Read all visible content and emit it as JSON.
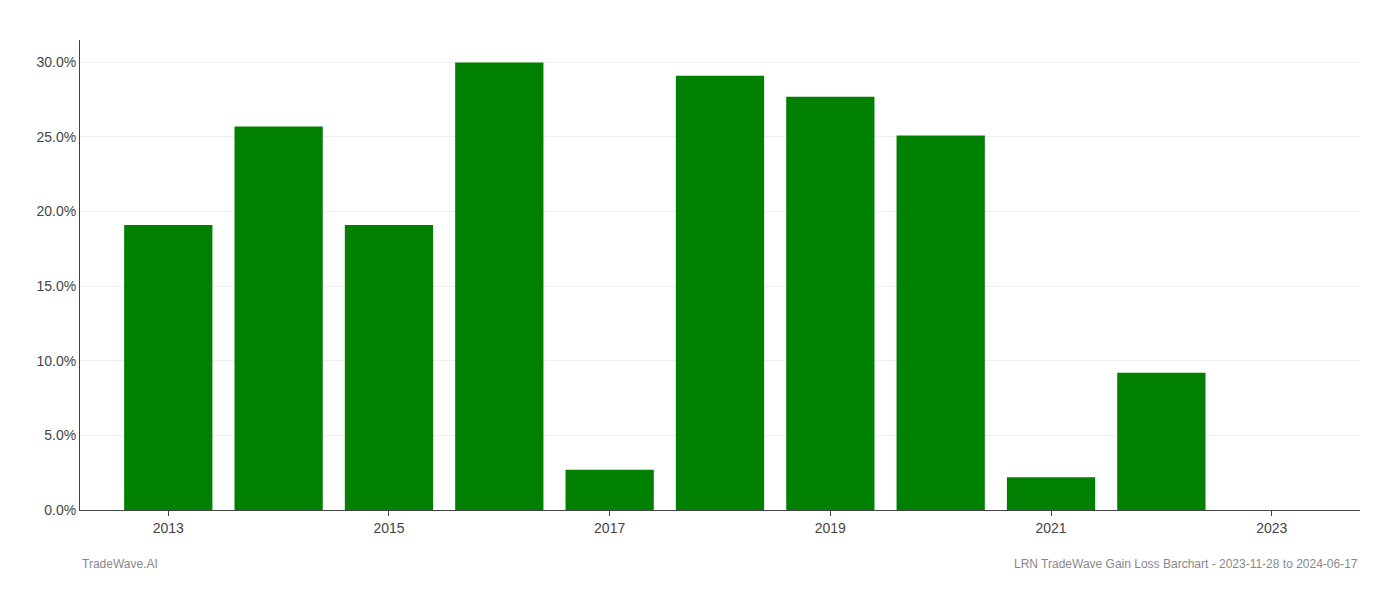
{
  "chart_data": {
    "type": "bar",
    "x": [
      2013,
      2014,
      2015,
      2016,
      2017,
      2018,
      2019,
      2020,
      2021,
      2022
    ],
    "values": [
      0.191,
      0.257,
      0.191,
      0.3,
      0.027,
      0.291,
      0.277,
      0.251,
      0.022,
      0.092
    ],
    "color": "#008000",
    "xlim": [
      2012.2,
      2023.8
    ],
    "xticks": [
      2013,
      2015,
      2017,
      2019,
      2021,
      2023
    ],
    "ylim": [
      0,
      0.315
    ],
    "yticks": [
      {
        "value": 0.0,
        "label": "0.0%"
      },
      {
        "value": 0.05,
        "label": "5.0%"
      },
      {
        "value": 0.1,
        "label": "10.0%"
      },
      {
        "value": 0.15,
        "label": "15.0%"
      },
      {
        "value": 0.2,
        "label": "20.0%"
      },
      {
        "value": 0.25,
        "label": "25.0%"
      },
      {
        "value": 0.3,
        "label": "30.0%"
      }
    ],
    "grid": true,
    "annotations": [
      "TradeWave.AI",
      "LRN TradeWave Gain Loss Barchart - 2023-11-28 to 2024-06-17"
    ]
  }
}
